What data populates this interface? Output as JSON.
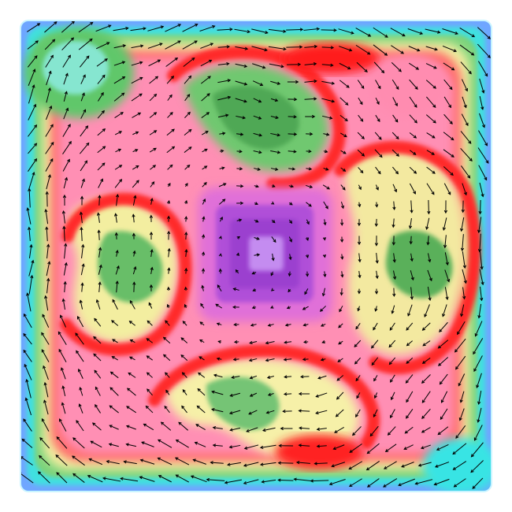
{
  "figure": {
    "kind": "contour-field-with-vector-arrows",
    "colormap": [
      "#1e3cff",
      "#3c78ff",
      "#50c8ff",
      "#00e6e6",
      "#8cf0b4",
      "#64c878",
      "#3c963c",
      "#a0dc78",
      "#f0f0a0",
      "#ffd278",
      "#ff9650",
      "#ff2828",
      "#e60000",
      "#ff6e8c",
      "#f096b4",
      "#dc6edc",
      "#b450dc",
      "#a046c8",
      "#c88cf0"
    ],
    "boundary_color": "#b4f0ff",
    "arrow_color": "#000000",
    "grid": false,
    "legend": false
  }
}
